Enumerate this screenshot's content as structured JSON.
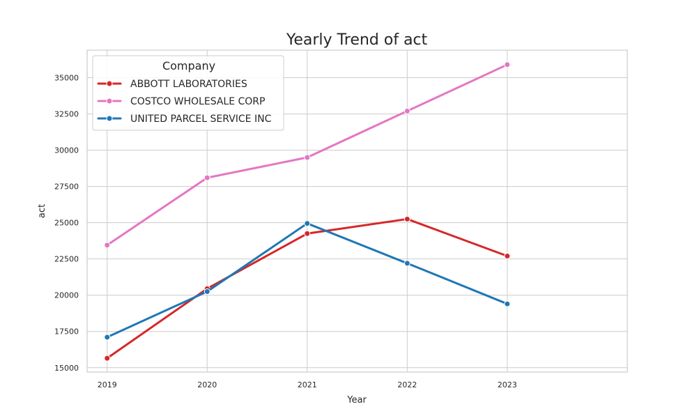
{
  "chart_data": {
    "type": "line",
    "title": "Yearly Trend of act",
    "xlabel": "Year",
    "ylabel": "act",
    "x": [
      2019,
      2020,
      2021,
      2022,
      2023
    ],
    "xlim": [
      2018.8,
      2024.2
    ],
    "ylim": [
      14700,
      36900
    ],
    "yticks": [
      15000,
      17500,
      20000,
      22500,
      25000,
      27500,
      30000,
      32500,
      35000
    ],
    "grid": true,
    "legend": {
      "title": "Company",
      "placement": "top-left"
    },
    "series": [
      {
        "name": "ABBOTT LABORATORIES",
        "color": "#d62728",
        "values": [
          15650,
          20450,
          24250,
          25250,
          22700
        ]
      },
      {
        "name": "COSTCO WHOLESALE CORP",
        "color": "#e377c2",
        "values": [
          23450,
          28100,
          29500,
          32700,
          35900
        ]
      },
      {
        "name": "UNITED PARCEL SERVICE INC",
        "color": "#1f77b4",
        "values": [
          17100,
          20250,
          24950,
          22200,
          19400
        ]
      }
    ]
  }
}
